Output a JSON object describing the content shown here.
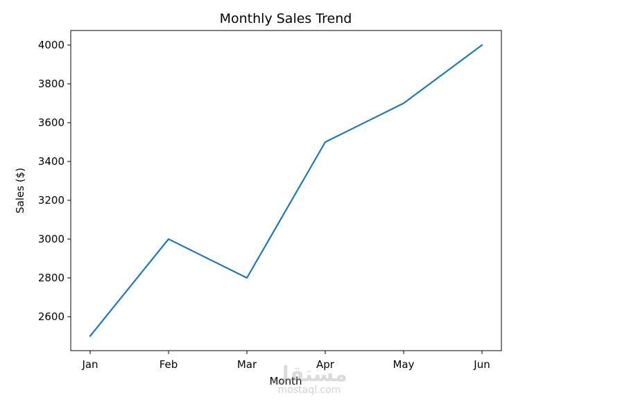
{
  "chart_data": {
    "type": "line",
    "title": "Monthly Sales Trend",
    "xlabel": "Month",
    "ylabel": "Sales ($)",
    "categories": [
      "Jan",
      "Feb",
      "Mar",
      "Apr",
      "May",
      "Jun"
    ],
    "series": [
      {
        "values": [
          2500,
          3000,
          2800,
          3500,
          3700,
          4000
        ],
        "color": "#1f77b4"
      }
    ],
    "yticks": [
      2600,
      2800,
      3000,
      3200,
      3400,
      3600,
      3800,
      4000
    ],
    "ylim": [
      2425,
      4075
    ],
    "grid": false,
    "legend": "none"
  },
  "watermark": {
    "mark": "مستقل",
    "site": "mostaql.com"
  }
}
